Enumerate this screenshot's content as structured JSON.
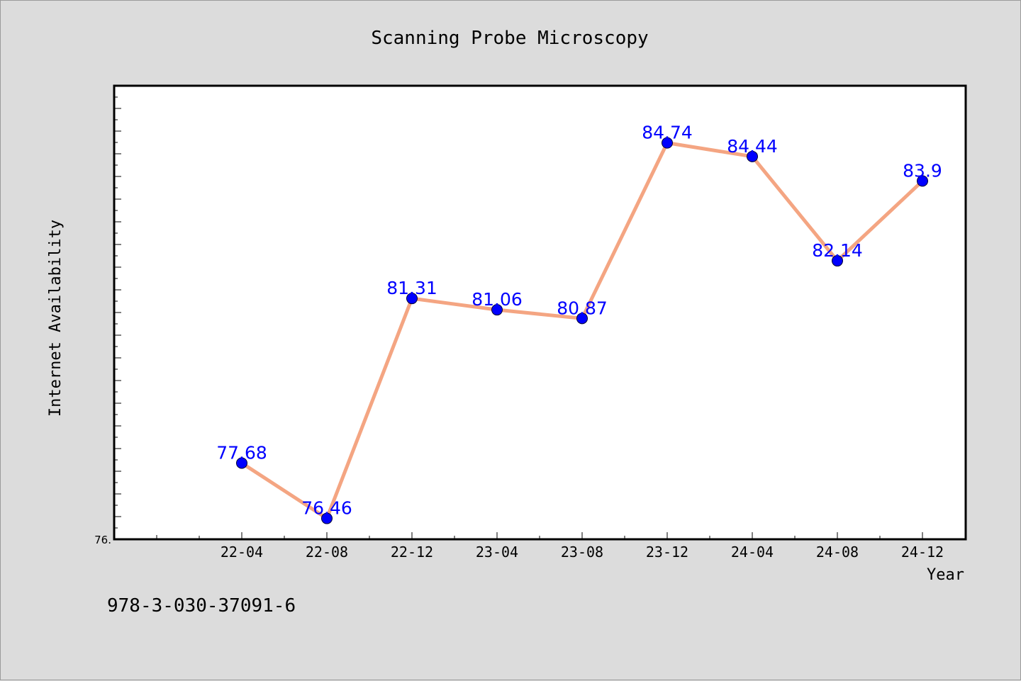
{
  "footnote": "978-3-030-37091-6",
  "colors": {
    "background": "#dcdcdc",
    "plot_background": "#ffffff",
    "line": "#f4a582",
    "marker": "#0000ff",
    "label": "#0000ff"
  },
  "chart_data": {
    "type": "line",
    "title": "Scanning Probe Microscopy",
    "xlabel": "Year",
    "ylabel": "Internet Availability",
    "categories": [
      "22-04",
      "22-08",
      "22-12",
      "23-04",
      "23-08",
      "23-12",
      "24-04",
      "24-08",
      "24-12"
    ],
    "series": [
      {
        "values": [
          77.68,
          76.46,
          81.31,
          81.06,
          80.87,
          84.74,
          84.44,
          82.14,
          83.9
        ],
        "data_labels": [
          "77.68",
          "76.46",
          "81.31",
          "81.06",
          "80.87",
          "84.74",
          "84.44",
          "82.14",
          "83.9"
        ]
      }
    ],
    "y_tick_labels": [
      "76."
    ],
    "ylim": [
      76.0,
      86.0
    ],
    "grid": false,
    "legend": "none"
  }
}
